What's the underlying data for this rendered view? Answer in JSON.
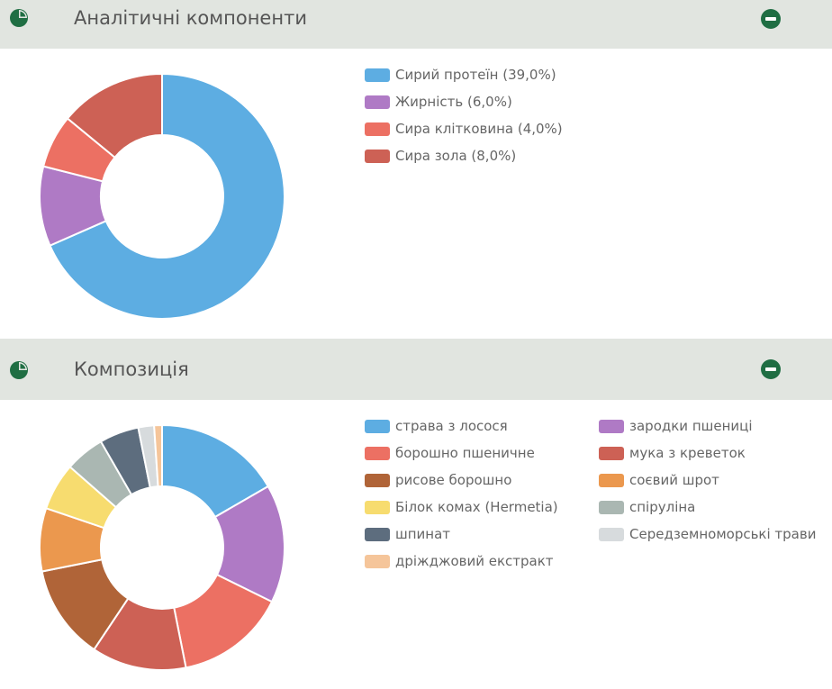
{
  "panels": [
    {
      "title": "Аналітичні компоненти",
      "icon": "pie-chart-icon",
      "collapse_icon": "minus-circle-icon"
    },
    {
      "title": "Композиція",
      "icon": "pie-chart-icon",
      "collapse_icon": "minus-circle-icon"
    }
  ],
  "colors": {
    "header_bg": "#e1e5e0",
    "icon_green": "#1f6e43"
  },
  "chart_data": [
    {
      "type": "pie",
      "donut": true,
      "categories": [
        "Сирий протеїн (39,0%)",
        "Жирність (6,0%)",
        "Сира клітковина (4,0%)",
        "Сира зола (8,0%)"
      ],
      "values": [
        39.0,
        6.0,
        4.0,
        8.0
      ],
      "colors": [
        "#5dade2",
        "#af7ac5",
        "#ec7063",
        "#cd6155"
      ],
      "legend_placement": "right"
    },
    {
      "type": "pie",
      "donut": true,
      "categories": [
        "страва з лосося",
        "зародки пшениці",
        "борошно пшеничне",
        "мука з креветок",
        "рисове борошно",
        "соєвий шрот",
        "Білок комах (Hermetia)",
        "спіруліна",
        "шпинат",
        "Середземноморські трави",
        "дріжджовий екстракт"
      ],
      "values": [
        16,
        15,
        14,
        12,
        12,
        8,
        6,
        5,
        5,
        2,
        1
      ],
      "colors": [
        "#5dade2",
        "#af7ac5",
        "#ec7063",
        "#cd6155",
        "#b06438",
        "#eb984e",
        "#f7dc6f",
        "#aab7b2",
        "#5d6d7e",
        "#d7dbdd",
        "#f5c59a"
      ],
      "legend_placement": "right"
    }
  ]
}
